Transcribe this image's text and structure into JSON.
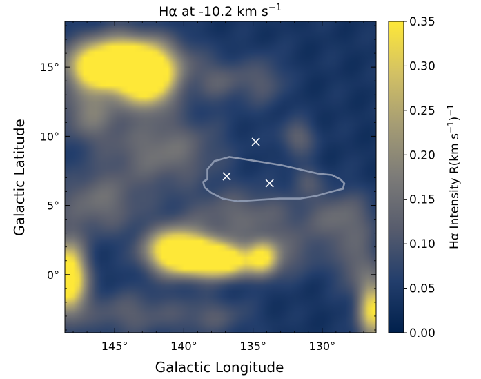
{
  "chart_data": {
    "type": "heatmap",
    "title_prefix": "Hα at -10.2 km s",
    "title_exp": "−1",
    "xlabel": "Galactic Longitude",
    "ylabel": "Galactic Latitude",
    "xlim": [
      148.6,
      126.1
    ],
    "ylim": [
      -4.2,
      18.3
    ],
    "xticks": [
      {
        "v": 145,
        "label": "145°"
      },
      {
        "v": 140,
        "label": "140°"
      },
      {
        "v": 135,
        "label": "135°"
      },
      {
        "v": 130,
        "label": "130°"
      }
    ],
    "yticks": [
      {
        "v": 0,
        "label": "0°"
      },
      {
        "v": 5,
        "label": "5°"
      },
      {
        "v": 10,
        "label": "10°"
      },
      {
        "v": 15,
        "label": "15°"
      }
    ],
    "colorbar": {
      "label_a": "Hα Intensity R(km s",
      "label_exp1": "−1",
      "label_b": ")",
      "label_exp2": "−1",
      "vmin": 0.0,
      "vmax": 0.35,
      "ticks": [
        {
          "v": 0.0,
          "label": "0.00"
        },
        {
          "v": 0.05,
          "label": "0.05"
        },
        {
          "v": 0.1,
          "label": "0.10"
        },
        {
          "v": 0.15,
          "label": "0.15"
        },
        {
          "v": 0.2,
          "label": "0.20"
        },
        {
          "v": 0.25,
          "label": "0.25"
        },
        {
          "v": 0.3,
          "label": "0.30"
        },
        {
          "v": 0.35,
          "label": "0.35"
        }
      ],
      "colors": [
        "#00204c",
        "#233e6c",
        "#575c6d",
        "#7c7b78",
        "#a59c74",
        "#d3c164",
        "#fee838"
      ]
    },
    "background_level": 0.04,
    "emission_blobs": [
      {
        "l": 144.3,
        "b": 15.3,
        "sl": 2.5,
        "sb": 1.3,
        "amp": 0.44
      },
      {
        "l": 142.6,
        "b": 13.8,
        "sl": 1.3,
        "sb": 1.3,
        "amp": 0.3
      },
      {
        "l": 145.8,
        "b": 14.9,
        "sl": 1.4,
        "sb": 0.9,
        "amp": 0.22
      },
      {
        "l": 140.6,
        "b": 1.7,
        "sl": 1.5,
        "sb": 1.1,
        "amp": 0.4
      },
      {
        "l": 138.5,
        "b": 1.2,
        "sl": 1.4,
        "sb": 0.9,
        "amp": 0.3
      },
      {
        "l": 136.8,
        "b": 1.0,
        "sl": 1.2,
        "sb": 0.8,
        "amp": 0.28
      },
      {
        "l": 134.3,
        "b": 1.2,
        "sl": 0.8,
        "sb": 0.9,
        "amp": 0.3
      },
      {
        "l": 148.4,
        "b": -0.2,
        "sl": 0.9,
        "sb": 1.7,
        "amp": 0.42
      },
      {
        "l": 126.4,
        "b": -2.6,
        "sl": 0.7,
        "sb": 1.5,
        "amp": 0.3
      },
      {
        "l": 146.8,
        "b": 11.8,
        "sl": 1.5,
        "sb": 1.5,
        "amp": 0.13
      },
      {
        "l": 141.5,
        "b": 9.0,
        "sl": 2.8,
        "sb": 1.8,
        "amp": 0.12
      },
      {
        "l": 146.2,
        "b": 5.2,
        "sl": 2.2,
        "sb": 1.6,
        "amp": 0.11
      },
      {
        "l": 135.8,
        "b": 4.2,
        "sl": 3.0,
        "sb": 1.4,
        "amp": 0.1
      },
      {
        "l": 137.2,
        "b": 14.0,
        "sl": 1.4,
        "sb": 1.1,
        "amp": 0.08
      },
      {
        "l": 134.1,
        "b": 14.0,
        "sl": 1.0,
        "sb": 1.3,
        "amp": 0.07
      },
      {
        "l": 131.8,
        "b": 9.9,
        "sl": 0.9,
        "sb": 0.9,
        "amp": 0.09
      },
      {
        "l": 128.6,
        "b": 4.1,
        "sl": 1.7,
        "sb": 1.4,
        "amp": 0.1
      },
      {
        "l": 127.6,
        "b": 0.8,
        "sl": 1.1,
        "sb": 1.5,
        "amp": 0.09
      },
      {
        "l": 144.0,
        "b": -2.8,
        "sl": 2.5,
        "sb": 1.2,
        "amp": 0.08
      },
      {
        "l": 138.0,
        "b": -3.0,
        "sl": 2.0,
        "sb": 1.0,
        "amp": 0.07
      },
      {
        "l": 132.0,
        "b": 1.5,
        "sl": 1.2,
        "sb": 1.2,
        "amp": 0.07
      },
      {
        "l": 131.2,
        "b": 6.9,
        "sl": 0.8,
        "sb": 0.8,
        "amp": 0.06
      }
    ],
    "contour": [
      [
        138.3,
        6.9
      ],
      [
        138.6,
        6.7
      ],
      [
        138.5,
        6.3
      ],
      [
        138.0,
        5.9
      ],
      [
        137.2,
        5.5
      ],
      [
        136.1,
        5.3
      ],
      [
        134.6,
        5.4
      ],
      [
        133.1,
        5.5
      ],
      [
        131.6,
        5.5
      ],
      [
        130.4,
        5.7
      ],
      [
        129.3,
        6.0
      ],
      [
        128.5,
        6.2
      ],
      [
        128.4,
        6.6
      ],
      [
        128.7,
        6.9
      ],
      [
        129.3,
        7.2
      ],
      [
        130.3,
        7.3
      ],
      [
        131.6,
        7.6
      ],
      [
        132.9,
        7.9
      ],
      [
        134.1,
        8.1
      ],
      [
        135.4,
        8.3
      ],
      [
        136.7,
        8.5
      ],
      [
        137.8,
        8.2
      ],
      [
        138.3,
        7.6
      ],
      [
        138.3,
        6.9
      ]
    ],
    "contour_color": "#8a96ae",
    "markers": [
      {
        "l": 134.8,
        "b": 9.6
      },
      {
        "l": 136.9,
        "b": 7.1
      },
      {
        "l": 133.8,
        "b": 6.6
      }
    ],
    "marker_color": "#ffffff"
  }
}
